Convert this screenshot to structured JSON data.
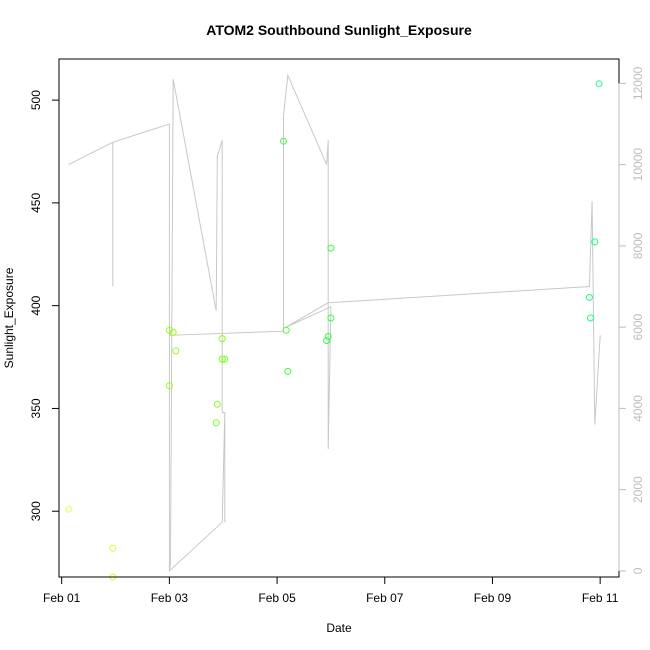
{
  "chart_data": {
    "type": "scatter",
    "title": "ATOM2 Southbound Sunlight_Exposure",
    "xlabel": "Date",
    "ylabel": "Sunlight_Exposure",
    "x_ticks": [
      "Feb 01",
      "Feb 03",
      "Feb 05",
      "Feb 07",
      "Feb 09",
      "Feb 11"
    ],
    "x_tick_days": [
      1,
      3,
      5,
      7,
      9,
      11
    ],
    "xlim": [
      0.95,
      11.35
    ],
    "ylim": [
      268,
      520
    ],
    "y_ticks": [
      300,
      350,
      400,
      450,
      500
    ],
    "secondary_axis": {
      "side": "right",
      "color": "#bdbdbd",
      "ylim": [
        -150,
        12600
      ],
      "ticks": [
        0,
        2000,
        4000,
        6000,
        8000,
        10000,
        12000
      ]
    },
    "points": [
      {
        "day": 1.13,
        "y": 301,
        "color": "#e6ff4d"
      },
      {
        "day": 1.95,
        "y": 282,
        "color": "#ccff33"
      },
      {
        "day": 1.95,
        "y": 268,
        "color": "#ccff33"
      },
      {
        "day": 3.0,
        "y": 361,
        "color": "#99ff1a"
      },
      {
        "day": 3.0,
        "y": 388,
        "color": "#99ff1a"
      },
      {
        "day": 3.07,
        "y": 387,
        "color": "#99ff1a"
      },
      {
        "day": 3.12,
        "y": 378,
        "color": "#99ff1a"
      },
      {
        "day": 3.87,
        "y": 343,
        "color": "#80ff1a"
      },
      {
        "day": 3.89,
        "y": 352,
        "color": "#80ff1a"
      },
      {
        "day": 3.98,
        "y": 384,
        "color": "#80ff1a"
      },
      {
        "day": 3.98,
        "y": 374,
        "color": "#80ff1a"
      },
      {
        "day": 4.03,
        "y": 374,
        "color": "#80ff1a"
      },
      {
        "day": 5.12,
        "y": 480,
        "color": "#40ff33"
      },
      {
        "day": 5.17,
        "y": 388,
        "color": "#40ff33"
      },
      {
        "day": 5.2,
        "y": 368,
        "color": "#40ff33"
      },
      {
        "day": 5.92,
        "y": 383,
        "color": "#33ff40"
      },
      {
        "day": 5.95,
        "y": 385,
        "color": "#33ff40"
      },
      {
        "day": 6.0,
        "y": 394,
        "color": "#33ff40"
      },
      {
        "day": 6.0,
        "y": 428,
        "color": "#33ff40"
      },
      {
        "day": 10.8,
        "y": 404,
        "color": "#1aff80"
      },
      {
        "day": 10.82,
        "y": 394,
        "color": "#1aff80"
      },
      {
        "day": 10.9,
        "y": 431,
        "color": "#1aff80"
      },
      {
        "day": 10.98,
        "y": 508,
        "color": "#1aff99"
      }
    ],
    "line_series": {
      "axis": "right",
      "color": "#c8c8c8",
      "points": [
        [
          1.13,
          10000
        ],
        [
          1.95,
          10550
        ],
        [
          1.95,
          7000
        ],
        [
          1.95,
          10550
        ],
        [
          3.0,
          11000
        ],
        [
          3.0,
          0
        ],
        [
          3.02,
          200
        ],
        [
          3.07,
          12100
        ],
        [
          3.87,
          6400
        ],
        [
          3.89,
          10200
        ],
        [
          3.98,
          10600
        ],
        [
          3.98,
          3900
        ],
        [
          4.03,
          3900
        ],
        [
          4.03,
          1200
        ],
        [
          4.03,
          3900
        ],
        [
          3.98,
          1200
        ],
        [
          3.0,
          0
        ],
        [
          3.0,
          5800
        ],
        [
          5.12,
          5900
        ],
        [
          5.12,
          11200
        ],
        [
          5.2,
          12200
        ],
        [
          5.92,
          10000
        ],
        [
          5.95,
          10600
        ],
        [
          5.95,
          3000
        ],
        [
          6.0,
          6500
        ],
        [
          5.17,
          6000
        ],
        [
          5.95,
          6600
        ],
        [
          10.8,
          7000
        ],
        [
          10.85,
          9100
        ],
        [
          10.9,
          3600
        ],
        [
          11.0,
          5800
        ]
      ]
    }
  }
}
